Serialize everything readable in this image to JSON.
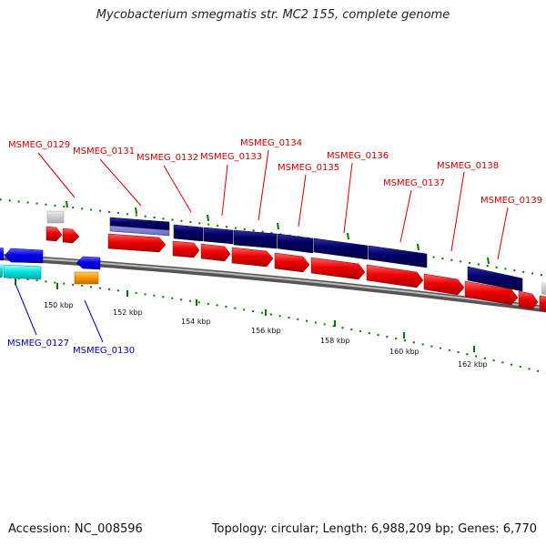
{
  "title": "Mycobacterium smegmatis str. MC2 155, complete genome",
  "footer": {
    "accession_label": "Accession:",
    "accession": "NC_008596",
    "topology_label": "Topology:",
    "topology": "circular",
    "length_label": "Length:",
    "length": "6,988,209 bp",
    "genes_label": "Genes:",
    "genes": "6,770"
  },
  "scale_labels": [
    "150 kbp",
    "152 kbp",
    "154 kbp",
    "156 kbp",
    "158 kbp",
    "160 kbp",
    "162 kbp"
  ],
  "gene_labels_forward": [
    "MSMEG_0129",
    "MSMEG_0131",
    "MSMEG_0132",
    "MSMEG_0133",
    "MSMEG_0134",
    "MSMEG_0135",
    "MSMEG_0136",
    "MSMEG_0137",
    "MSMEG_0138",
    "MSMEG_0139"
  ],
  "gene_labels_reverse": [
    "MSMEG_0127",
    "MSMEG_0130"
  ],
  "colors": {
    "forward_label": "#cc0000",
    "reverse_label": "#0000aa",
    "cds_arrow": "#ee0000",
    "gene_bar": "#000066",
    "reverse_gene": "#0000ee",
    "reverse_cds": "#00dddd",
    "other_feature": "#ff9900",
    "pseudo": "#bbbbbb",
    "backbone": "#888888",
    "tick": "#007700"
  }
}
